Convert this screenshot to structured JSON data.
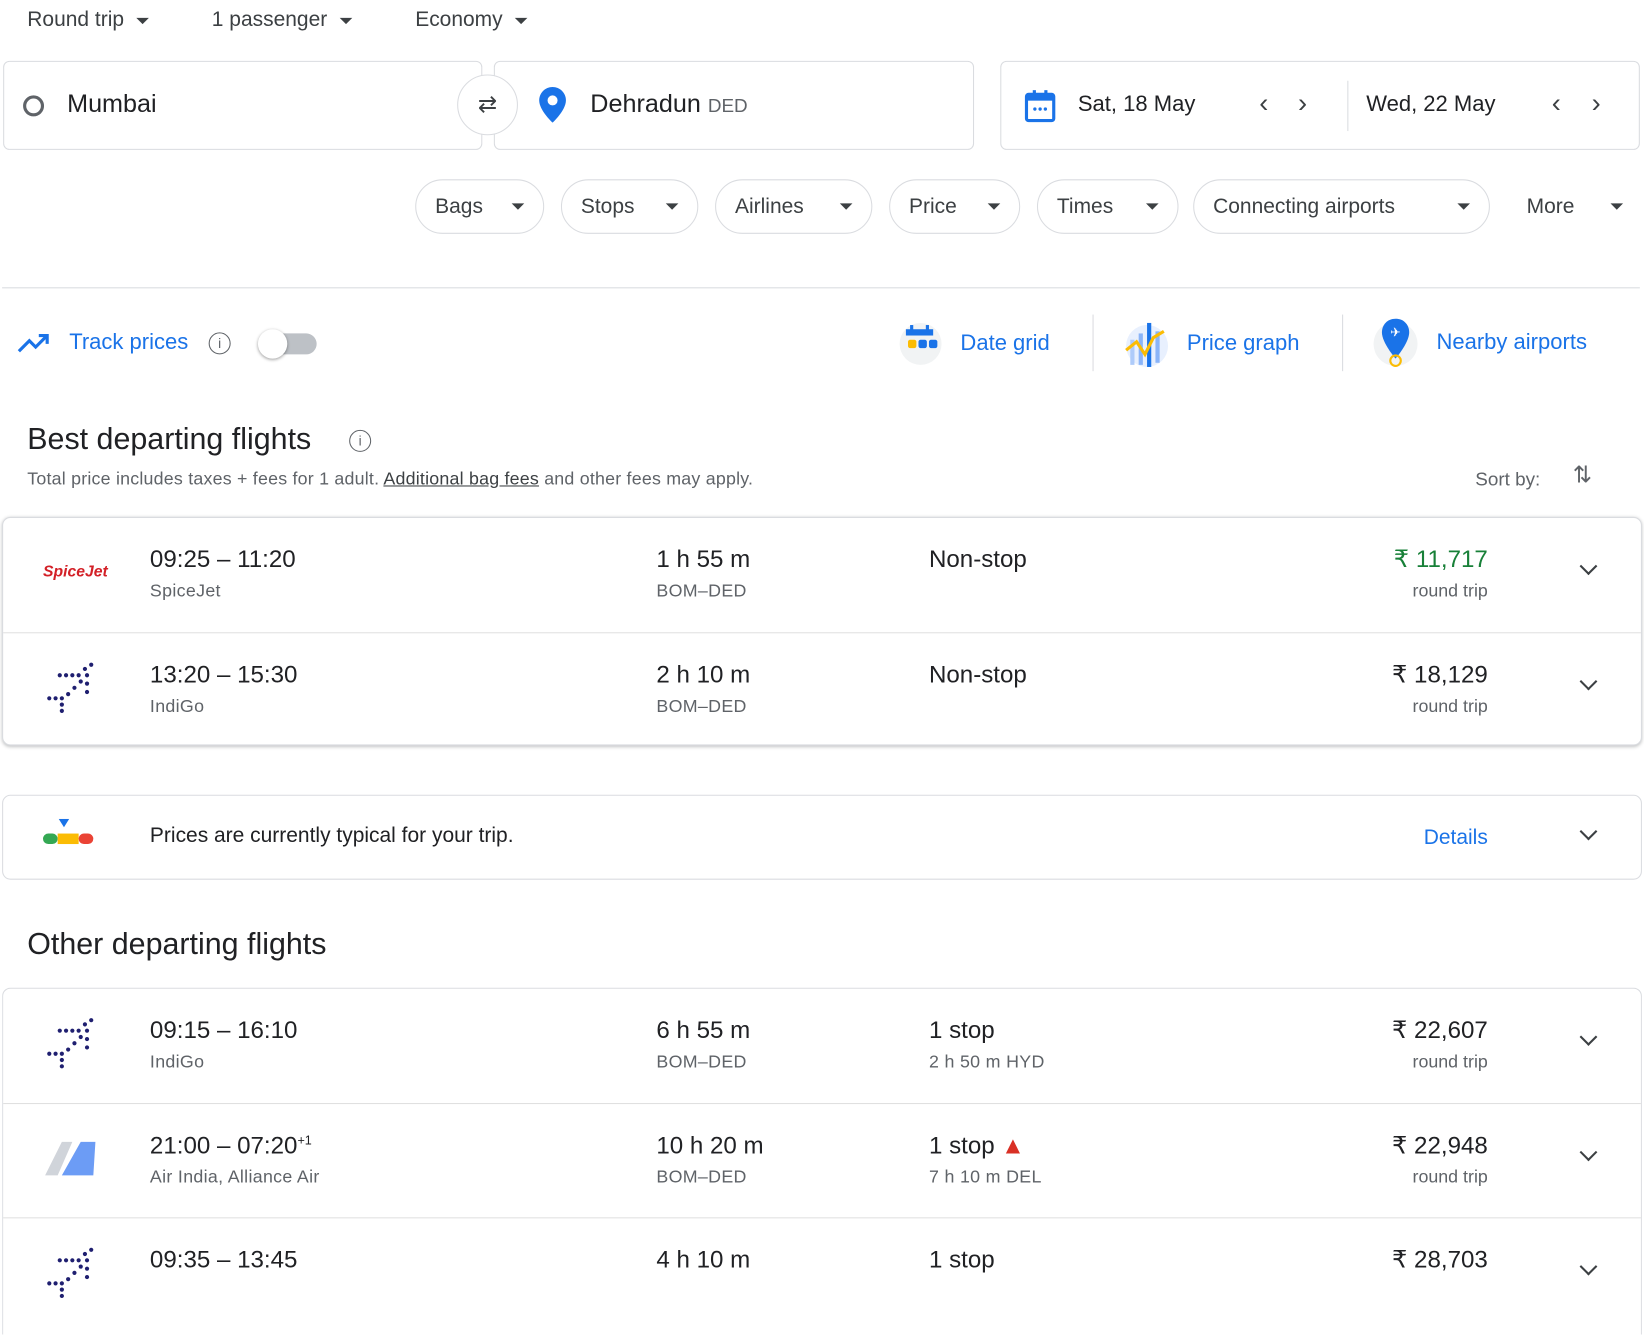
{
  "search": {
    "trip_type": "Round trip",
    "passengers": "1 passenger",
    "cabin": "Economy",
    "origin": "Mumbai",
    "destination": "Dehradun",
    "destination_code": "DED",
    "depart_date": "Sat, 18 May",
    "return_date": "Wed, 22 May"
  },
  "filters": [
    "Bags",
    "Stops",
    "Airlines",
    "Price",
    "Times",
    "Connecting airports",
    "More"
  ],
  "tools": {
    "track_prices": "Track prices",
    "track_enabled": false,
    "date_grid": "Date grid",
    "price_graph": "Price graph",
    "nearby_airports": "Nearby airports"
  },
  "best": {
    "title": "Best departing flights",
    "note_pre": "Total price includes taxes + fees for 1 adult. ",
    "note_link": "Additional bag fees",
    "note_post": " and other fees may apply.",
    "sort_label": "Sort by:",
    "flights": [
      {
        "logo": "SpiceJet",
        "times": "09:25 – 11:20",
        "airline": "SpiceJet",
        "duration": "1 h 55 m",
        "route": "BOM–DED",
        "stops": "Non-stop",
        "stop_detail": "",
        "price": "₹ 11,717",
        "price_note": "round trip",
        "price_color": "#188038"
      },
      {
        "logo": "indigo",
        "times": "13:20 – 15:30",
        "airline": "IndiGo",
        "duration": "2 h 10 m",
        "route": "BOM–DED",
        "stops": "Non-stop",
        "stop_detail": "",
        "price": "₹ 18,129",
        "price_note": "round trip",
        "price_color": "#202124"
      }
    ]
  },
  "insight": {
    "text": "Prices are currently typical for your trip.",
    "details": "Details"
  },
  "other": {
    "title": "Other departing flights",
    "flights": [
      {
        "logo": "indigo",
        "times": "09:15 – 16:10",
        "sup": "",
        "airline": "IndiGo",
        "duration": "6 h 55 m",
        "route": "BOM–DED",
        "stops": "1 stop",
        "warning": false,
        "stop_detail": "2 h 50 m HYD",
        "price": "₹ 22,607",
        "price_note": "round trip"
      },
      {
        "logo": "airindia",
        "times": "21:00 – 07:20",
        "sup": "+1",
        "airline": "Air India, Alliance Air",
        "duration": "10 h 20 m",
        "route": "BOM–DED",
        "stops": "1 stop",
        "warning": true,
        "stop_detail": "7 h 10 m DEL",
        "price": "₹ 22,948",
        "price_note": "round trip"
      },
      {
        "logo": "indigo",
        "times": "09:35 – 13:45",
        "sup": "",
        "airline": "",
        "duration": "4 h 10 m",
        "route": "",
        "stops": "1 stop",
        "warning": false,
        "stop_detail": "",
        "price": "₹ 28,703",
        "price_note": ""
      }
    ]
  }
}
